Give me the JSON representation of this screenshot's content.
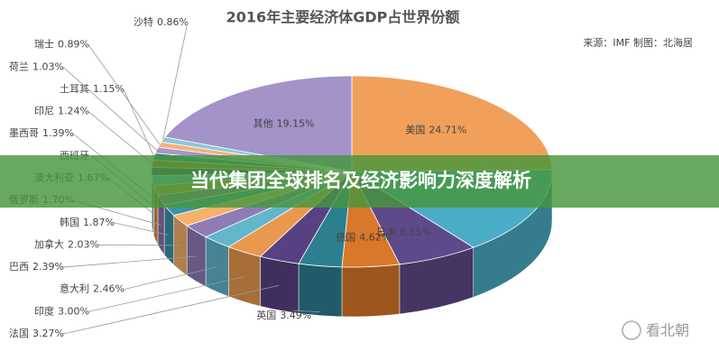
{
  "chart_data": {
    "type": "pie3d",
    "title": "2016年主要经济体GDP占世界份额",
    "source": "来源：IMF 制图：北海居",
    "watermark": "看北朝",
    "categories": [
      "美国",
      null,
      "日本",
      "德国",
      "英国",
      "法国",
      "印度",
      "意大利",
      "巴西",
      "加拿大",
      "韩国",
      "俄罗斯",
      "澳大利亚",
      "西班牙",
      "墨西哥",
      "印尼",
      "土耳其",
      "荷兰",
      "瑞士",
      "沙特",
      "其他"
    ],
    "values": [
      24.71,
      14.91,
      6.55,
      4.62,
      3.49,
      3.27,
      3.0,
      2.46,
      2.39,
      2.03,
      1.87,
      1.7,
      1.67,
      1.62,
      1.39,
      1.24,
      1.15,
      1.03,
      0.89,
      0.86,
      19.15
    ],
    "value_labels": [
      "24.71%",
      null,
      "6.55%",
      "4.62%",
      "3.49%",
      "3.27%",
      "3.00%",
      "2.46%",
      "2.39%",
      "2.03%",
      "1.87%",
      "1.70%",
      "1.67%",
      null,
      "1.39%",
      "1.24%",
      "1.15%",
      "1.03%",
      "0.89%",
      "0.86%",
      "19.15%"
    ],
    "colors": [
      "#f0a05a",
      "#4bacc6",
      "#5e4a8a",
      "#d9772a",
      "#2c7f8f",
      "#574183",
      "#e8994e",
      "#62b6cc",
      "#8f7bb6",
      "#f5b06a",
      "#3d93a8",
      "#8a6fb0",
      "#e08a3c",
      "#6cc0d4",
      "#4a3575",
      "#c86a25",
      "#357e8e",
      "#a896c8",
      "#f3b27a",
      "#89c9da",
      "#a393c8"
    ]
  },
  "banner": "当代集团全球排名及经济影响力深度解析"
}
